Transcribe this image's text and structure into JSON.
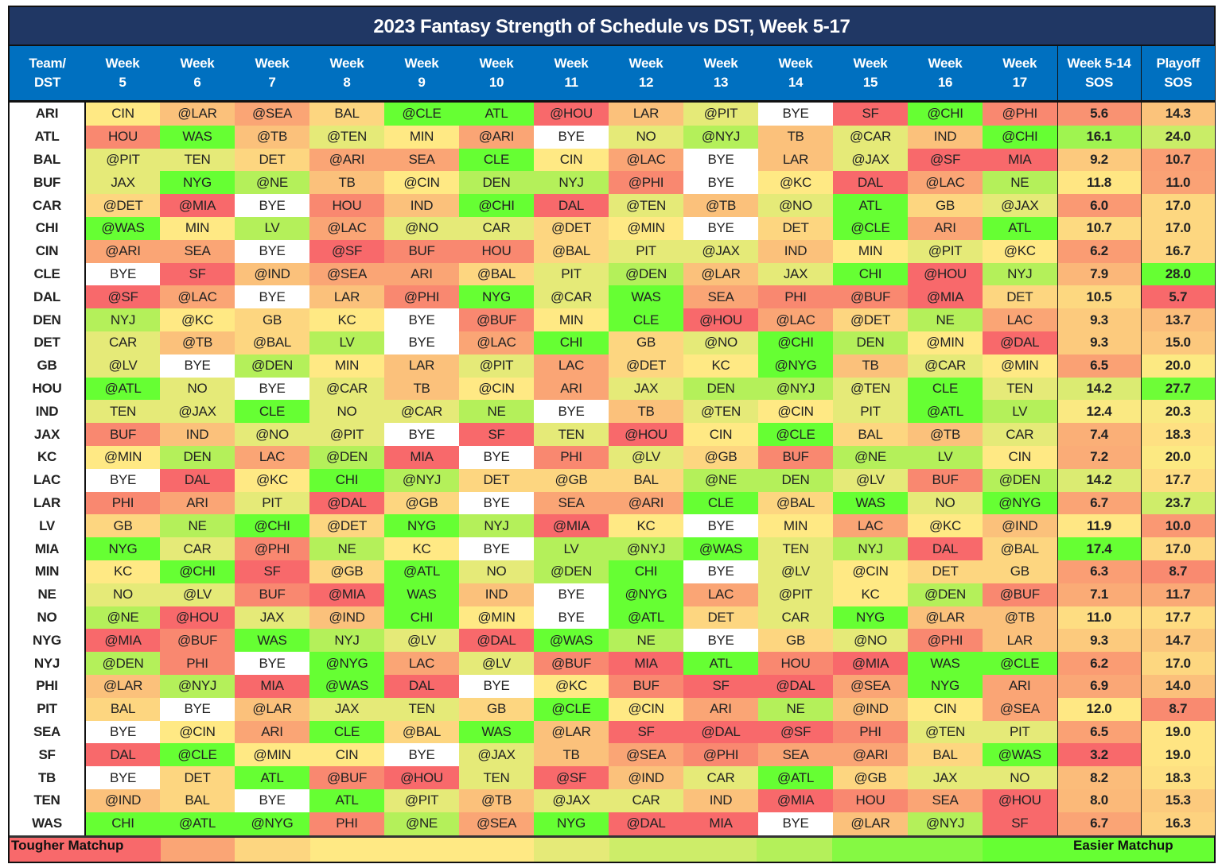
{
  "chart_data": {
    "type": "table",
    "title": "2023 Fantasy Strength of Schedule vs DST, Week 5-17",
    "columns": [
      "Team/ DST",
      "Week 5",
      "Week 6",
      "Week 7",
      "Week 8",
      "Week 9",
      "Week 10",
      "Week 11",
      "Week 12",
      "Week 13",
      "Week 14",
      "Week 15",
      "Week 16",
      "Week 17",
      "Week 5-14 SOS",
      "Playoff SOS"
    ],
    "header_lines": [
      [
        "Team/",
        "DST"
      ],
      [
        "Week",
        "5"
      ],
      [
        "Week",
        "6"
      ],
      [
        "Week",
        "7"
      ],
      [
        "Week",
        "8"
      ],
      [
        "Week",
        "9"
      ],
      [
        "Week",
        "10"
      ],
      [
        "Week",
        "11"
      ],
      [
        "Week",
        "12"
      ],
      [
        "Week",
        "13"
      ],
      [
        "Week",
        "14"
      ],
      [
        "Week",
        "15"
      ],
      [
        "Week",
        "16"
      ],
      [
        "Week",
        "17"
      ],
      [
        "Week 5-14",
        "SOS"
      ],
      [
        "Playoff",
        "SOS"
      ]
    ],
    "rows": [
      {
        "team": "ARI",
        "games": [
          "CIN",
          "@LAR",
          "@SEA",
          "BAL",
          "@CLE",
          "ATL",
          "@HOU",
          "LAR",
          "@PIT",
          "BYE",
          "SF",
          "@CHI",
          "@PHI"
        ],
        "sos": "5.6",
        "playoff": "14.3"
      },
      {
        "team": "ATL",
        "games": [
          "HOU",
          "WAS",
          "@TB",
          "@TEN",
          "MIN",
          "@ARI",
          "BYE",
          "NO",
          "@NYJ",
          "TB",
          "@CAR",
          "IND",
          "@CHI"
        ],
        "sos": "16.1",
        "playoff": "24.0"
      },
      {
        "team": "BAL",
        "games": [
          "@PIT",
          "TEN",
          "DET",
          "@ARI",
          "SEA",
          "CLE",
          "CIN",
          "@LAC",
          "BYE",
          "LAR",
          "@JAX",
          "@SF",
          "MIA"
        ],
        "sos": "9.2",
        "playoff": "10.7"
      },
      {
        "team": "BUF",
        "games": [
          "JAX",
          "NYG",
          "@NE",
          "TB",
          "@CIN",
          "DEN",
          "NYJ",
          "@PHI",
          "BYE",
          "@KC",
          "DAL",
          "@LAC",
          "NE"
        ],
        "sos": "11.8",
        "playoff": "11.0"
      },
      {
        "team": "CAR",
        "games": [
          "@DET",
          "@MIA",
          "BYE",
          "HOU",
          "IND",
          "@CHI",
          "DAL",
          "@TEN",
          "@TB",
          "@NO",
          "ATL",
          "GB",
          "@JAX"
        ],
        "sos": "6.0",
        "playoff": "17.0"
      },
      {
        "team": "CHI",
        "games": [
          "@WAS",
          "MIN",
          "LV",
          "@LAC",
          "@NO",
          "CAR",
          "@DET",
          "@MIN",
          "BYE",
          "DET",
          "@CLE",
          "ARI",
          "ATL"
        ],
        "sos": "10.7",
        "playoff": "17.0"
      },
      {
        "team": "CIN",
        "games": [
          "@ARI",
          "SEA",
          "BYE",
          "@SF",
          "BUF",
          "HOU",
          "@BAL",
          "PIT",
          "@JAX",
          "IND",
          "MIN",
          "@PIT",
          "@KC"
        ],
        "sos": "6.2",
        "playoff": "16.7"
      },
      {
        "team": "CLE",
        "games": [
          "BYE",
          "SF",
          "@IND",
          "@SEA",
          "ARI",
          "@BAL",
          "PIT",
          "@DEN",
          "@LAR",
          "JAX",
          "CHI",
          "@HOU",
          "NYJ"
        ],
        "sos": "7.9",
        "playoff": "28.0"
      },
      {
        "team": "DAL",
        "games": [
          "@SF",
          "@LAC",
          "BYE",
          "LAR",
          "@PHI",
          "NYG",
          "@CAR",
          "WAS",
          "SEA",
          "PHI",
          "@BUF",
          "@MIA",
          "DET"
        ],
        "sos": "10.5",
        "playoff": "5.7"
      },
      {
        "team": "DEN",
        "games": [
          "NYJ",
          "@KC",
          "GB",
          "KC",
          "BYE",
          "@BUF",
          "MIN",
          "CLE",
          "@HOU",
          "@LAC",
          "@DET",
          "NE",
          "LAC"
        ],
        "sos": "9.3",
        "playoff": "13.7"
      },
      {
        "team": "DET",
        "games": [
          "CAR",
          "@TB",
          "@BAL",
          "LV",
          "BYE",
          "@LAC",
          "CHI",
          "GB",
          "@NO",
          "@CHI",
          "DEN",
          "@MIN",
          "@DAL"
        ],
        "sos": "9.3",
        "playoff": "15.0"
      },
      {
        "team": "GB",
        "games": [
          "@LV",
          "BYE",
          "@DEN",
          "MIN",
          "LAR",
          "@PIT",
          "LAC",
          "@DET",
          "KC",
          "@NYG",
          "TB",
          "@CAR",
          "@MIN"
        ],
        "sos": "6.5",
        "playoff": "20.0"
      },
      {
        "team": "HOU",
        "games": [
          "@ATL",
          "NO",
          "BYE",
          "@CAR",
          "TB",
          "@CIN",
          "ARI",
          "JAX",
          "DEN",
          "@NYJ",
          "@TEN",
          "CLE",
          "TEN"
        ],
        "sos": "14.2",
        "playoff": "27.7"
      },
      {
        "team": "IND",
        "games": [
          "TEN",
          "@JAX",
          "CLE",
          "NO",
          "@CAR",
          "NE",
          "BYE",
          "TB",
          "@TEN",
          "@CIN",
          "PIT",
          "@ATL",
          "LV"
        ],
        "sos": "12.4",
        "playoff": "20.3"
      },
      {
        "team": "JAX",
        "games": [
          "BUF",
          "IND",
          "@NO",
          "@PIT",
          "BYE",
          "SF",
          "TEN",
          "@HOU",
          "CIN",
          "@CLE",
          "BAL",
          "@TB",
          "CAR"
        ],
        "sos": "7.4",
        "playoff": "18.3"
      },
      {
        "team": "KC",
        "games": [
          "@MIN",
          "DEN",
          "LAC",
          "@DEN",
          "MIA",
          "BYE",
          "PHI",
          "@LV",
          "@GB",
          "BUF",
          "@NE",
          "LV",
          "CIN"
        ],
        "sos": "7.2",
        "playoff": "20.0"
      },
      {
        "team": "LAC",
        "games": [
          "BYE",
          "DAL",
          "@KC",
          "CHI",
          "@NYJ",
          "DET",
          "@GB",
          "BAL",
          "@NE",
          "DEN",
          "@LV",
          "BUF",
          "@DEN"
        ],
        "sos": "14.2",
        "playoff": "17.7"
      },
      {
        "team": "LAR",
        "games": [
          "PHI",
          "ARI",
          "PIT",
          "@DAL",
          "@GB",
          "BYE",
          "SEA",
          "@ARI",
          "CLE",
          "@BAL",
          "WAS",
          "NO",
          "@NYG"
        ],
        "sos": "6.7",
        "playoff": "23.7"
      },
      {
        "team": "LV",
        "games": [
          "GB",
          "NE",
          "@CHI",
          "@DET",
          "NYG",
          "NYJ",
          "@MIA",
          "KC",
          "BYE",
          "MIN",
          "LAC",
          "@KC",
          "@IND"
        ],
        "sos": "11.9",
        "playoff": "10.0"
      },
      {
        "team": "MIA",
        "games": [
          "NYG",
          "CAR",
          "@PHI",
          "NE",
          "KC",
          "BYE",
          "LV",
          "@NYJ",
          "@WAS",
          "TEN",
          "NYJ",
          "DAL",
          "@BAL"
        ],
        "sos": "17.4",
        "playoff": "17.0"
      },
      {
        "team": "MIN",
        "games": [
          "KC",
          "@CHI",
          "SF",
          "@GB",
          "@ATL",
          "NO",
          "@DEN",
          "CHI",
          "BYE",
          "@LV",
          "@CIN",
          "DET",
          "GB"
        ],
        "sos": "6.3",
        "playoff": "8.7"
      },
      {
        "team": "NE",
        "games": [
          "NO",
          "@LV",
          "BUF",
          "@MIA",
          "WAS",
          "IND",
          "BYE",
          "@NYG",
          "LAC",
          "@PIT",
          "KC",
          "@DEN",
          "@BUF"
        ],
        "sos": "7.1",
        "playoff": "11.7"
      },
      {
        "team": "NO",
        "games": [
          "@NE",
          "@HOU",
          "JAX",
          "@IND",
          "CHI",
          "@MIN",
          "BYE",
          "@ATL",
          "DET",
          "CAR",
          "NYG",
          "@LAR",
          "@TB"
        ],
        "sos": "11.0",
        "playoff": "17.7"
      },
      {
        "team": "NYG",
        "games": [
          "@MIA",
          "@BUF",
          "WAS",
          "NYJ",
          "@LV",
          "@DAL",
          "@WAS",
          "NE",
          "BYE",
          "GB",
          "@NO",
          "@PHI",
          "LAR"
        ],
        "sos": "9.3",
        "playoff": "14.7"
      },
      {
        "team": "NYJ",
        "games": [
          "@DEN",
          "PHI",
          "BYE",
          "@NYG",
          "LAC",
          "@LV",
          "@BUF",
          "MIA",
          "ATL",
          "HOU",
          "@MIA",
          "WAS",
          "@CLE"
        ],
        "sos": "6.2",
        "playoff": "17.0"
      },
      {
        "team": "PHI",
        "games": [
          "@LAR",
          "@NYJ",
          "MIA",
          "@WAS",
          "DAL",
          "BYE",
          "@KC",
          "BUF",
          "SF",
          "@DAL",
          "@SEA",
          "NYG",
          "ARI"
        ],
        "sos": "6.9",
        "playoff": "14.0"
      },
      {
        "team": "PIT",
        "games": [
          "BAL",
          "BYE",
          "@LAR",
          "JAX",
          "TEN",
          "GB",
          "@CLE",
          "@CIN",
          "ARI",
          "NE",
          "@IND",
          "CIN",
          "@SEA"
        ],
        "sos": "12.0",
        "playoff": "8.7"
      },
      {
        "team": "SEA",
        "games": [
          "BYE",
          "@CIN",
          "ARI",
          "CLE",
          "@BAL",
          "WAS",
          "@LAR",
          "SF",
          "@DAL",
          "@SF",
          "PHI",
          "@TEN",
          "PIT"
        ],
        "sos": "6.5",
        "playoff": "19.0"
      },
      {
        "team": "SF",
        "games": [
          "DAL",
          "@CLE",
          "@MIN",
          "CIN",
          "BYE",
          "@JAX",
          "TB",
          "@SEA",
          "@PHI",
          "SEA",
          "@ARI",
          "BAL",
          "@WAS"
        ],
        "sos": "3.2",
        "playoff": "19.0"
      },
      {
        "team": "TB",
        "games": [
          "BYE",
          "DET",
          "ATL",
          "@BUF",
          "@HOU",
          "TEN",
          "@SF",
          "@IND",
          "CAR",
          "@ATL",
          "@GB",
          "JAX",
          "NO"
        ],
        "sos": "8.2",
        "playoff": "18.3"
      },
      {
        "team": "TEN",
        "games": [
          "@IND",
          "BAL",
          "BYE",
          "ATL",
          "@PIT",
          "@TB",
          "@JAX",
          "CAR",
          "IND",
          "@MIA",
          "HOU",
          "SEA",
          "@HOU"
        ],
        "sos": "8.0",
        "playoff": "15.3"
      },
      {
        "team": "WAS",
        "games": [
          "CHI",
          "@ATL",
          "@NYG",
          "PHI",
          "@NE",
          "@SEA",
          "NYG",
          "@DAL",
          "MIA",
          "BYE",
          "@LAR",
          "@NYJ",
          "SF"
        ],
        "sos": "6.7",
        "playoff": "16.3"
      }
    ],
    "matchup_level": {
      "SF": 0,
      "@SF": 0,
      "DAL": 0,
      "@DAL": 0,
      "MIA": 0,
      "@MIA": 0,
      "@HOU": 0,
      "HOU": 1,
      "PHI": 1,
      "@PHI": 1,
      "BUF": 1,
      "@BUF": 1,
      "SEA": 2,
      "@SEA": 2,
      "ARI": 2,
      "@ARI": 2,
      "LAC": 2,
      "@LAC": 2,
      "LAR": 3,
      "@LAR": 3,
      "TB": 3,
      "@TB": 3,
      "IND": 3,
      "@IND": 3,
      "BAL": 4,
      "@BAL": 4,
      "DET": 4,
      "@DET": 4,
      "GB": 4,
      "@GB": 4,
      "CIN": 5,
      "@CIN": 5,
      "KC": 5,
      "@KC": 5,
      "MIN": 5,
      "@MIN": 5,
      "PIT": 6,
      "@PIT": 6,
      "JAX": 6,
      "@JAX": 6,
      "NO": 6,
      "@NO": 6,
      "TEN": 6,
      "@TEN": 6,
      "CAR": 6,
      "@CAR": 6,
      "@LV": 6,
      "LV": 7,
      "NE": 7,
      "@NE": 7,
      "NYJ": 7,
      "@NYJ": 7,
      "DEN": 7,
      "@DEN": 7,
      "CLE": 8,
      "@CLE": 8,
      "CHI": 8,
      "@CHI": 8,
      "ATL": 8,
      "@ATL": 8,
      "WAS": 8,
      "@WAS": 8,
      "NYG": 8,
      "@NYG": 8
    },
    "scale_colors": [
      "#f8696b",
      "#f98870",
      "#faa575",
      "#fbc17b",
      "#fdd680",
      "#ffe984",
      "#e5ea78",
      "#b4f05a",
      "#66ff33"
    ],
    "bye_color": "#ffffff",
    "legend": {
      "left": "Tougher Matchup",
      "right": "Easier Matchup"
    }
  },
  "colors": {
    "title_bg": "#203764",
    "header_bg": "#0070c0"
  }
}
